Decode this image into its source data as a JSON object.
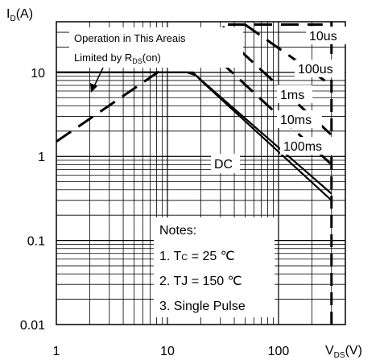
{
  "chart_data": {
    "type": "line",
    "title": "",
    "xlabel": {
      "main": "V",
      "sub": "DS",
      "tail": "(V)"
    },
    "ylabel": {
      "main": "I",
      "sub": "D",
      "tail": "(A)"
    },
    "xscale": "log",
    "yscale": "log",
    "xlim": [
      1,
      400
    ],
    "ylim": [
      0.01,
      40
    ],
    "grid": true,
    "x_ticks": [
      {
        "value": 1,
        "label": "1"
      },
      {
        "value": 10,
        "label": "10"
      },
      {
        "value": 100,
        "label": "100"
      }
    ],
    "y_ticks": [
      {
        "value": 0.01,
        "label": "0.01"
      },
      {
        "value": 0.1,
        "label": "0.1"
      },
      {
        "value": 1,
        "label": "1"
      },
      {
        "value": 10,
        "label": "10"
      }
    ],
    "vertical_limit": {
      "x": 300
    },
    "series": [
      {
        "name": "DC",
        "style": "solid",
        "points": [
          [
            1,
            10
          ],
          [
            17,
            10
          ],
          [
            20,
            8
          ],
          [
            300,
            0.3
          ]
        ]
      },
      {
        "name": "100ms",
        "style": "solid",
        "points": [
          [
            1,
            10
          ],
          [
            15,
            10
          ],
          [
            18,
            9.2
          ],
          [
            300,
            0.36
          ]
        ]
      },
      {
        "name": "RDS(on) limit",
        "style": "dashed",
        "points": [
          [
            1,
            1.5
          ],
          [
            35,
            37
          ]
        ]
      },
      {
        "name": "10us",
        "style": "dashed",
        "points": [
          [
            35,
            37
          ],
          [
            250,
            37
          ]
        ]
      },
      {
        "name": "100us",
        "style": "dashed",
        "points": [
          [
            50,
            37
          ],
          [
            300,
            7
          ]
        ]
      },
      {
        "name": "1ms",
        "style": "dashed",
        "points": [
          [
            30,
            30
          ],
          [
            300,
            1.8
          ]
        ]
      },
      {
        "name": "10ms",
        "style": "dashed",
        "points": [
          [
            20,
            22
          ],
          [
            300,
            0.8
          ]
        ]
      }
    ],
    "annotations": {
      "limit_line1": "Operation in This Areais",
      "limit_line2_main": "Limited by R",
      "limit_line2_sub": "DS",
      "limit_line2_tail": "(on)",
      "label_10us": "10us",
      "label_100us": "100us",
      "label_1ms": "1ms",
      "label_10ms": "10ms",
      "label_100ms": "100ms",
      "label_dc": "DC",
      "notes_title": "Notes:",
      "note1_pre": "1. T",
      "note1_sub": "C",
      "note1_post": " = 25 ℃",
      "note2": "2. TJ = 150 ℃",
      "note3": "3. Single Pulse"
    },
    "colors": {
      "line": "#000000",
      "grid": "#000000",
      "background": "#ffffff"
    }
  }
}
